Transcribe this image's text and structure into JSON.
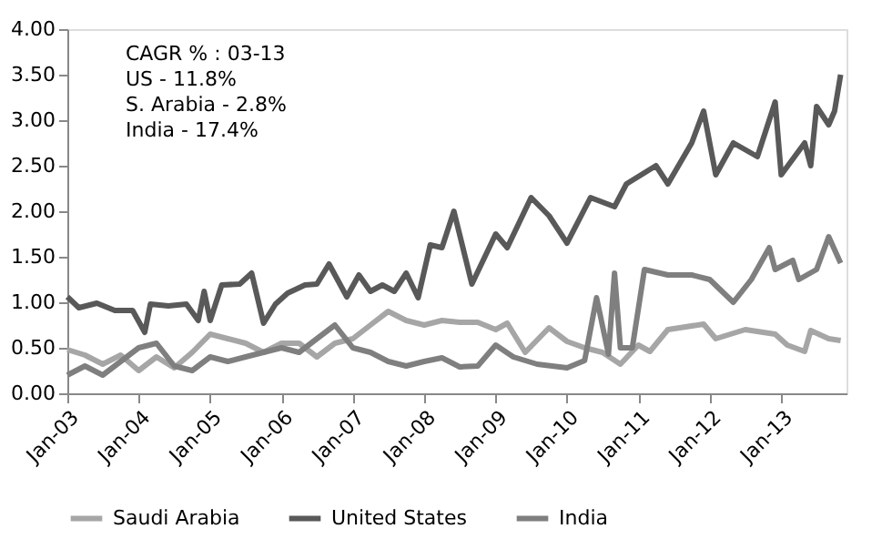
{
  "chart_data": {
    "type": "line",
    "annotations": [
      "CAGR % : 03-13",
      "US - 11.8%",
      "S. Arabia - 2.8%",
      "India - 17.4%"
    ],
    "xlim": [
      "2003-01",
      "2013-12"
    ],
    "xticks": [
      {
        "value": "2003-01",
        "label": "Jan-03"
      },
      {
        "value": "2004-01",
        "label": "Jan-04"
      },
      {
        "value": "2005-01",
        "label": "Jan-05"
      },
      {
        "value": "2006-01",
        "label": "Jan-06"
      },
      {
        "value": "2007-01",
        "label": "Jan-07"
      },
      {
        "value": "2008-01",
        "label": "Jan-08"
      },
      {
        "value": "2009-01",
        "label": "Jan-09"
      },
      {
        "value": "2010-01",
        "label": "Jan-10"
      },
      {
        "value": "2011-01",
        "label": "Jan-11"
      },
      {
        "value": "2012-01",
        "label": "Jan-12"
      },
      {
        "value": "2013-01",
        "label": "Jan-13"
      }
    ],
    "ylim": [
      0,
      4
    ],
    "yticks": [
      {
        "value": 0,
        "label": "0.00"
      },
      {
        "value": 0.5,
        "label": "0.50"
      },
      {
        "value": 1,
        "label": "1.00"
      },
      {
        "value": 1.5,
        "label": "1.50"
      },
      {
        "value": 2,
        "label": "2.00"
      },
      {
        "value": 2.5,
        "label": "2.50"
      },
      {
        "value": 3,
        "label": "3.00"
      },
      {
        "value": 3.5,
        "label": "3.50"
      },
      {
        "value": 4,
        "label": "4.00"
      }
    ],
    "grid": false,
    "legend": "bottom",
    "marker": "none",
    "line_style": "solid",
    "series": [
      {
        "name": "Saudi Arabia",
        "color": "#a6a6a6",
        "x": [
          "2003-01",
          "2003-04",
          "2003-07",
          "2003-10",
          "2004-01",
          "2004-04",
          "2004-07",
          "2004-10",
          "2005-01",
          "2005-04",
          "2005-07",
          "2005-10",
          "2006-01",
          "2006-04",
          "2006-07",
          "2006-10",
          "2007-01",
          "2007-04",
          "2007-07",
          "2007-10",
          "2008-01",
          "2008-04",
          "2008-07",
          "2008-10",
          "2009-01",
          "2009-03",
          "2009-06",
          "2009-10",
          "2010-01",
          "2010-04",
          "2010-07",
          "2010-10",
          "2011-01",
          "2011-03",
          "2011-06",
          "2011-12",
          "2012-02",
          "2012-07",
          "2012-12",
          "2013-02",
          "2013-05",
          "2013-06",
          "2013-09",
          "2013-11"
        ],
        "values": [
          0.48,
          0.42,
          0.32,
          0.42,
          0.25,
          0.4,
          0.28,
          0.45,
          0.65,
          0.6,
          0.55,
          0.45,
          0.55,
          0.55,
          0.4,
          0.55,
          0.6,
          0.75,
          0.9,
          0.8,
          0.75,
          0.8,
          0.78,
          0.78,
          0.7,
          0.77,
          0.45,
          0.72,
          0.57,
          0.5,
          0.45,
          0.32,
          0.53,
          0.46,
          0.7,
          0.76,
          0.6,
          0.7,
          0.65,
          0.53,
          0.46,
          0.69,
          0.6,
          0.58
        ]
      },
      {
        "name": "United States",
        "color": "#595959",
        "x": [
          "2003-01",
          "2003-03",
          "2003-06",
          "2003-09",
          "2003-12",
          "2004-02",
          "2004-03",
          "2004-06",
          "2004-09",
          "2004-11",
          "2004-12",
          "2005-01",
          "2005-03",
          "2005-06",
          "2005-08",
          "2005-10",
          "2005-12",
          "2006-02",
          "2006-05",
          "2006-07",
          "2006-09",
          "2006-12",
          "2007-02",
          "2007-04",
          "2007-06",
          "2007-08",
          "2007-10",
          "2007-12",
          "2008-02",
          "2008-04",
          "2008-06",
          "2008-09",
          "2009-01",
          "2009-03",
          "2009-07",
          "2009-10",
          "2010-01",
          "2010-05",
          "2010-09",
          "2010-11",
          "2011-04",
          "2011-06",
          "2011-10",
          "2011-12",
          "2012-02",
          "2012-05",
          "2012-09",
          "2012-12",
          "2013-01",
          "2013-05",
          "2013-06",
          "2013-07",
          "2013-09",
          "2013-10",
          "2013-11"
        ],
        "values": [
          1.06,
          0.94,
          0.99,
          0.91,
          0.91,
          0.67,
          0.98,
          0.96,
          0.98,
          0.8,
          1.12,
          0.8,
          1.19,
          1.2,
          1.32,
          0.77,
          0.98,
          1.1,
          1.19,
          1.2,
          1.42,
          1.06,
          1.3,
          1.12,
          1.19,
          1.12,
          1.32,
          1.05,
          1.63,
          1.6,
          2.0,
          1.2,
          1.75,
          1.6,
          2.15,
          1.95,
          1.65,
          2.15,
          2.05,
          2.3,
          2.5,
          2.3,
          2.75,
          3.1,
          2.4,
          2.75,
          2.6,
          3.2,
          2.4,
          2.75,
          2.5,
          3.15,
          2.95,
          3.1,
          3.5
        ]
      },
      {
        "name": "India",
        "color": "#7f7f7f",
        "x": [
          "2003-01",
          "2003-04",
          "2003-07",
          "2003-10",
          "2004-01",
          "2004-04",
          "2004-07",
          "2004-10",
          "2005-01",
          "2005-04",
          "2005-07",
          "2005-10",
          "2006-01",
          "2006-04",
          "2006-07",
          "2006-10",
          "2007-01",
          "2007-04",
          "2007-07",
          "2007-10",
          "2008-01",
          "2008-04",
          "2008-07",
          "2008-10",
          "2009-01",
          "2009-04",
          "2009-08",
          "2010-01",
          "2010-04",
          "2010-06",
          "2010-08",
          "2010-09",
          "2010-10",
          "2010-12",
          "2011-02",
          "2011-06",
          "2011-10",
          "2012-01",
          "2012-05",
          "2012-08",
          "2012-11",
          "2012-12",
          "2013-03",
          "2013-04",
          "2013-07",
          "2013-09",
          "2013-11"
        ],
        "values": [
          0.2,
          0.3,
          0.2,
          0.35,
          0.5,
          0.55,
          0.3,
          0.25,
          0.4,
          0.35,
          0.4,
          0.45,
          0.5,
          0.45,
          0.6,
          0.75,
          0.5,
          0.45,
          0.35,
          0.3,
          0.35,
          0.39,
          0.29,
          0.3,
          0.53,
          0.4,
          0.32,
          0.28,
          0.36,
          1.05,
          0.43,
          1.32,
          0.5,
          0.5,
          1.36,
          1.3,
          1.3,
          1.25,
          1.0,
          1.25,
          1.6,
          1.36,
          1.46,
          1.25,
          1.36,
          1.72,
          1.43
        ]
      }
    ]
  }
}
